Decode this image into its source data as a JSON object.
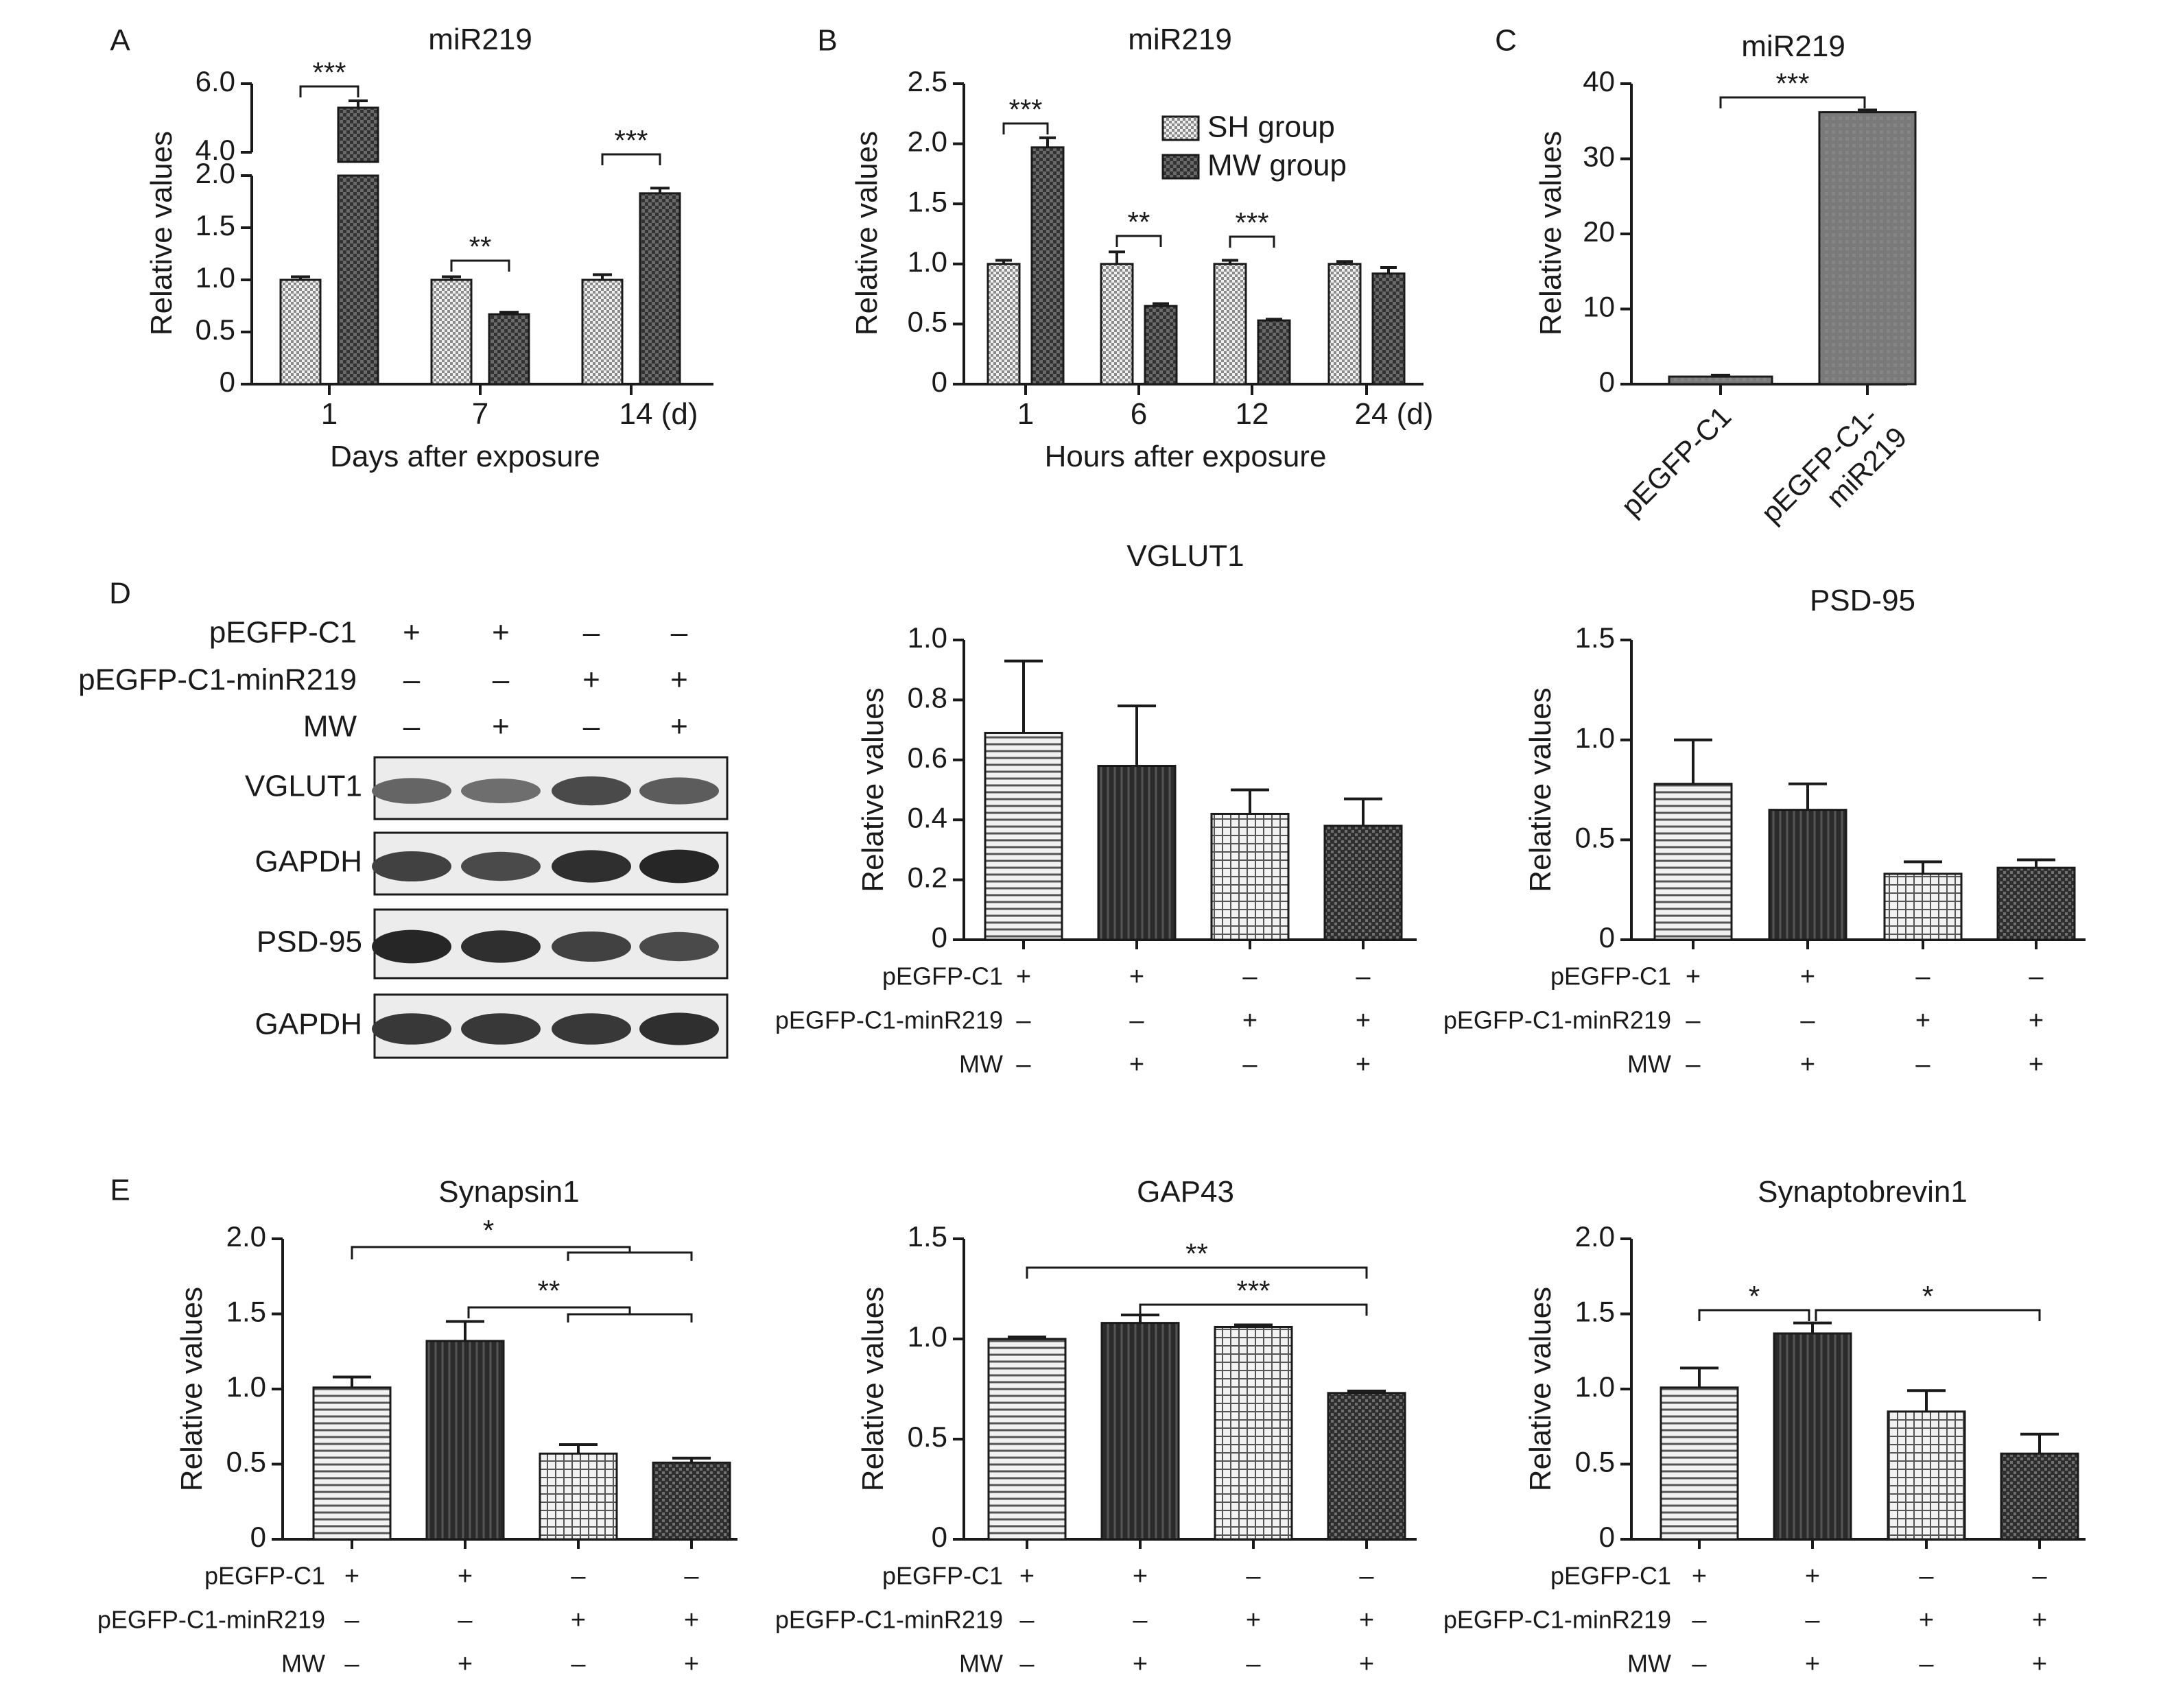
{
  "panels": [
    {
      "letter": "A"
    },
    {
      "letter": "B"
    },
    {
      "letter": "C"
    },
    {
      "letter": "D"
    },
    {
      "letter": "E"
    }
  ],
  "condition_rows": [
    "pEGFP-C1",
    "pEGFP-C1-minR219",
    "MW"
  ],
  "condition_signs": [
    [
      "+",
      "+",
      "–",
      "–"
    ],
    [
      "–",
      "–",
      "+",
      "+"
    ],
    [
      "–",
      "+",
      "–",
      "+"
    ]
  ],
  "blot": {
    "lanes": 4,
    "bands": [
      {
        "label": "VGLUT1",
        "intensity": [
          0.55,
          0.5,
          0.7,
          0.6
        ]
      },
      {
        "label": "GAPDH",
        "intensity": [
          0.75,
          0.7,
          0.85,
          0.9
        ]
      },
      {
        "label": "PSD-95",
        "intensity": [
          0.9,
          0.85,
          0.75,
          0.7
        ]
      },
      {
        "label": "GAPDH",
        "intensity": [
          0.8,
          0.8,
          0.8,
          0.85
        ]
      }
    ]
  },
  "colors": {
    "ink": "#1a1a1a",
    "sh": "#d4d4d4",
    "mw": "#3a3a3a",
    "bar_c": "#7a7a7a"
  },
  "chart_data": [
    {
      "id": "A",
      "type": "bar",
      "title": "miR219",
      "xlabel": "Days after exposure",
      "ylabel": "Relative values",
      "categories": [
        "1",
        "7",
        "14 (d)"
      ],
      "broken_axis": true,
      "ylim_lower": [
        0,
        2.0
      ],
      "ylim_upper": [
        4.0,
        6.0
      ],
      "yticks_lower": [
        "0",
        "0.5",
        "1.0",
        "1.5",
        "2.0"
      ],
      "yticks_upper": [
        "4.0",
        "6.0"
      ],
      "series": [
        {
          "values": [
            1.0,
            1.0,
            1.0
          ],
          "errors": [
            0.03,
            0.03,
            0.05
          ],
          "pattern": "sh"
        },
        {
          "values": [
            5.3,
            0.67,
            1.83
          ],
          "errors": [
            0.2,
            0.02,
            0.05
          ],
          "pattern": "mw"
        }
      ],
      "significance": [
        {
          "category": 0,
          "label": "***"
        },
        {
          "category": 1,
          "label": "**"
        },
        {
          "category": 2,
          "label": "***"
        }
      ]
    },
    {
      "id": "B",
      "type": "bar",
      "title": "miR219",
      "xlabel": "Hours after exposure",
      "ylabel": "Relative values",
      "categories": [
        "1",
        "6",
        "12",
        "24 (d)"
      ],
      "ylim": [
        0,
        2.5
      ],
      "yticks": [
        "0",
        "0.5",
        "1.0",
        "1.5",
        "2.0",
        "2.5"
      ],
      "legend": "top-right",
      "series": [
        {
          "name": "SH group",
          "values": [
            1.0,
            1.0,
            1.0,
            1.0
          ],
          "errors": [
            0.03,
            0.1,
            0.03,
            0.02
          ],
          "pattern": "sh"
        },
        {
          "name": "MW group",
          "values": [
            1.97,
            0.65,
            0.53,
            0.92
          ],
          "errors": [
            0.08,
            0.02,
            0.01,
            0.05
          ],
          "pattern": "mw"
        }
      ],
      "significance": [
        {
          "category": 0,
          "label": "***"
        },
        {
          "category": 1,
          "label": "**"
        },
        {
          "category": 2,
          "label": "***"
        }
      ]
    },
    {
      "id": "C",
      "type": "bar",
      "title": "miR219",
      "ylabel": "Relative values",
      "categories": [
        "pEGFP-C1",
        "pEGFP-C1-\nmiR219"
      ],
      "ylim": [
        0,
        40
      ],
      "yticks": [
        "0",
        "10",
        "20",
        "30",
        "40"
      ],
      "series": [
        {
          "values": [
            1.0,
            36.2
          ],
          "errors": [
            0.2,
            0.3
          ],
          "pattern": "c"
        }
      ],
      "significance": [
        {
          "from": 0,
          "to": 1,
          "label": "***"
        }
      ]
    },
    {
      "id": "VGLUT1",
      "type": "bar",
      "title": "VGLUT1",
      "ylabel": "Relative values",
      "ylim": [
        0,
        1.0
      ],
      "yticks": [
        "0",
        "0.2",
        "0.4",
        "0.6",
        "0.8",
        "1.0"
      ],
      "series": [
        {
          "values": [
            0.69,
            0.58,
            0.42,
            0.38
          ],
          "errors": [
            0.24,
            0.2,
            0.08,
            0.09
          ]
        }
      ],
      "significance": []
    },
    {
      "id": "PSD-95",
      "type": "bar",
      "title": "PSD-95",
      "ylabel": "Relative values",
      "ylim": [
        0,
        1.5
      ],
      "yticks": [
        "0",
        "0.5",
        "1.0",
        "1.5"
      ],
      "series": [
        {
          "values": [
            0.78,
            0.65,
            0.33,
            0.36
          ],
          "errors": [
            0.22,
            0.13,
            0.06,
            0.04
          ]
        }
      ],
      "significance": []
    },
    {
      "id": "Synapsin1",
      "type": "bar",
      "title": "Synapsin1",
      "ylabel": "Relative values",
      "ylim": [
        0,
        2.0
      ],
      "yticks": [
        "0",
        "0.5",
        "1.0",
        "1.5",
        "2.0"
      ],
      "series": [
        {
          "values": [
            1.01,
            1.32,
            0.57,
            0.51
          ],
          "errors": [
            0.07,
            0.13,
            0.06,
            0.03
          ]
        }
      ],
      "significance": [
        {
          "from": 0,
          "to": [
            2,
            3
          ],
          "label": "*"
        },
        {
          "from": 1,
          "to": [
            2,
            3
          ],
          "label": "**"
        }
      ]
    },
    {
      "id": "GAP43",
      "type": "bar",
      "title": "GAP43",
      "ylabel": "Relative values",
      "ylim": [
        0,
        1.5
      ],
      "yticks": [
        "0",
        "0.5",
        "1.0",
        "1.5"
      ],
      "series": [
        {
          "values": [
            1.0,
            1.08,
            1.06,
            0.73
          ],
          "errors": [
            0.01,
            0.04,
            0.01,
            0.01
          ]
        }
      ],
      "significance": [
        {
          "from": 0,
          "to": 3,
          "label": "**"
        },
        {
          "from": 1,
          "to": 3,
          "label": "***"
        }
      ]
    },
    {
      "id": "Synaptobrevin1",
      "type": "bar",
      "title": "Synaptobrevin1",
      "ylabel": "Relative values",
      "ylim": [
        0,
        2.0
      ],
      "yticks": [
        "0",
        "0.5",
        "1.0",
        "1.5",
        "2.0"
      ],
      "series": [
        {
          "values": [
            1.01,
            1.37,
            0.85,
            0.57
          ],
          "errors": [
            0.13,
            0.07,
            0.14,
            0.13
          ]
        }
      ],
      "significance": [
        {
          "from": 0,
          "to": 1,
          "label": "*"
        },
        {
          "from": 1,
          "to": 3,
          "label": "*"
        }
      ]
    }
  ]
}
